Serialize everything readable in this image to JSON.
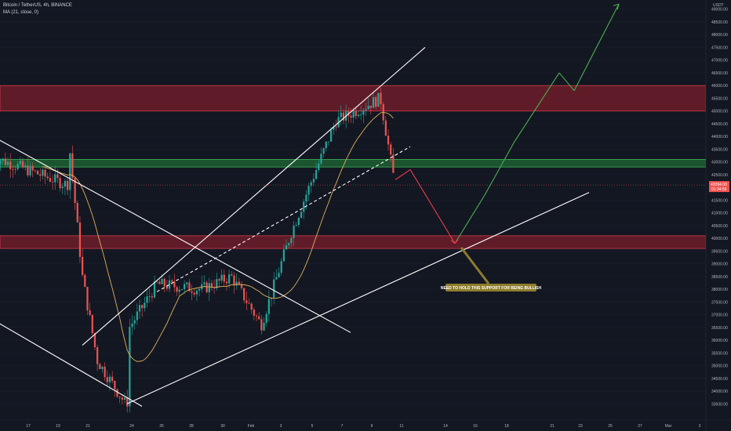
{
  "legend": {
    "symbol_line": "Bitcoin / TetherUS, 4h, BINANCE",
    "ma_line": "MA (21, close, 0)"
  },
  "price_axis": {
    "currency": "USDT",
    "ticks": [
      "49000.00",
      "48500.00",
      "48000.00",
      "47500.00",
      "47000.00",
      "46500.00",
      "46000.00",
      "45500.00",
      "45000.00",
      "44500.00",
      "44000.00",
      "43500.00",
      "43000.00",
      "42500.00",
      "41500.00",
      "41000.00",
      "40500.00",
      "40000.00",
      "39500.00",
      "39000.00",
      "38500.00",
      "38000.00",
      "37500.00",
      "37000.00",
      "36500.00",
      "36000.00",
      "35500.00",
      "35000.00",
      "34500.00",
      "34000.00",
      "33500.00"
    ],
    "last_price": "42094.00",
    "countdown": "01:34:56"
  },
  "time_axis": {
    "ticks": [
      "17",
      "19",
      "21",
      "24",
      "26",
      "28",
      "30",
      "Feb",
      "3",
      "5",
      "7",
      "9",
      "11",
      "14",
      "16",
      "18",
      "21",
      "23",
      "25",
      "27",
      "Mar",
      "3"
    ]
  },
  "annotation": {
    "text": "NEED TO HOLD THIS SUPPORT FOR BEING BULLISH"
  },
  "colors": {
    "background": "#131722",
    "up": "#26a69a",
    "down": "#ef5350",
    "ma": "#e0b15a",
    "resistance_zone": "#7a1f2b",
    "support_zone": "#1f6b35",
    "forecast_up": "#4caf50",
    "forecast_down": "#ef3b4d",
    "annotation_bg": "#8d7c2c"
  },
  "chart_data": {
    "type": "candlestick",
    "title": "Bitcoin / TetherUS, 4h, BINANCE",
    "ylim": [
      33200,
      49300
    ],
    "y_axis_position": "right",
    "x_range": [
      "2022-01-15",
      "2022-03-03"
    ],
    "zones": [
      {
        "name": "resistance",
        "low": 45000,
        "high": 46000
      },
      {
        "name": "support",
        "low": 42800,
        "high": 43100
      },
      {
        "name": "key-support",
        "low": 39600,
        "high": 40100
      }
    ],
    "moving_average": {
      "period": 21,
      "source": "close"
    },
    "candles_key_points": [
      {
        "date": "2022-01-15",
        "price": 43200
      },
      {
        "date": "2022-01-20",
        "price": 42100
      },
      {
        "date": "2022-01-20",
        "price": 43450
      },
      {
        "date": "2022-01-21",
        "price": 38500
      },
      {
        "date": "2022-01-22",
        "price": 35200
      },
      {
        "date": "2022-01-24",
        "price": 33400
      },
      {
        "date": "2022-01-24",
        "price": 36500
      },
      {
        "date": "2022-01-26",
        "price": 38200
      },
      {
        "date": "2022-01-29",
        "price": 38000
      },
      {
        "date": "2022-01-31",
        "price": 38500
      },
      {
        "date": "2022-02-02",
        "price": 36600
      },
      {
        "date": "2022-02-04",
        "price": 40200
      },
      {
        "date": "2022-02-05",
        "price": 41700
      },
      {
        "date": "2022-02-07",
        "price": 44600
      },
      {
        "date": "2022-02-10",
        "price": 45500
      },
      {
        "date": "2022-02-11",
        "price": 42000
      }
    ],
    "forecast_path": [
      {
        "date": "2022-02-11",
        "price": 42300,
        "color": "down"
      },
      {
        "date": "2022-02-12",
        "price": 42700,
        "color": "down"
      },
      {
        "date": "2022-02-15",
        "price": 39800,
        "color": "down"
      },
      {
        "date": "2022-02-17",
        "price": 41700,
        "color": "up"
      },
      {
        "date": "2022-02-19",
        "price": 43800,
        "color": "up"
      },
      {
        "date": "2022-02-22",
        "price": 46500,
        "color": "up"
      },
      {
        "date": "2022-02-23",
        "price": 45800,
        "color": "up"
      },
      {
        "date": "2022-02-26",
        "price": 49200,
        "color": "up"
      }
    ],
    "trendlines": [
      {
        "name": "rising-channel-upper",
        "from": {
          "date": "2022-01-21",
          "price": 35800
        },
        "to": {
          "date": "2022-02-13",
          "price": 47500
        }
      },
      {
        "name": "rising-channel-mid",
        "from": {
          "date": "2022-01-26",
          "price": 37900
        },
        "to": {
          "date": "2022-02-12",
          "price": 43600
        },
        "style": "dashed"
      },
      {
        "name": "rising-support",
        "from": {
          "date": "2022-01-24",
          "price": 33500
        },
        "to": {
          "date": "2022-02-24",
          "price": 41800
        }
      },
      {
        "name": "descending-resistance",
        "from": {
          "date": "2022-01-15",
          "price": 44000
        },
        "to": {
          "date": "2022-02-08",
          "price": 36300
        }
      },
      {
        "name": "lower-channel",
        "from": {
          "date": "2022-01-15",
          "price": 36800
        },
        "to": {
          "date": "2022-01-25",
          "price": 33400
        }
      }
    ]
  }
}
